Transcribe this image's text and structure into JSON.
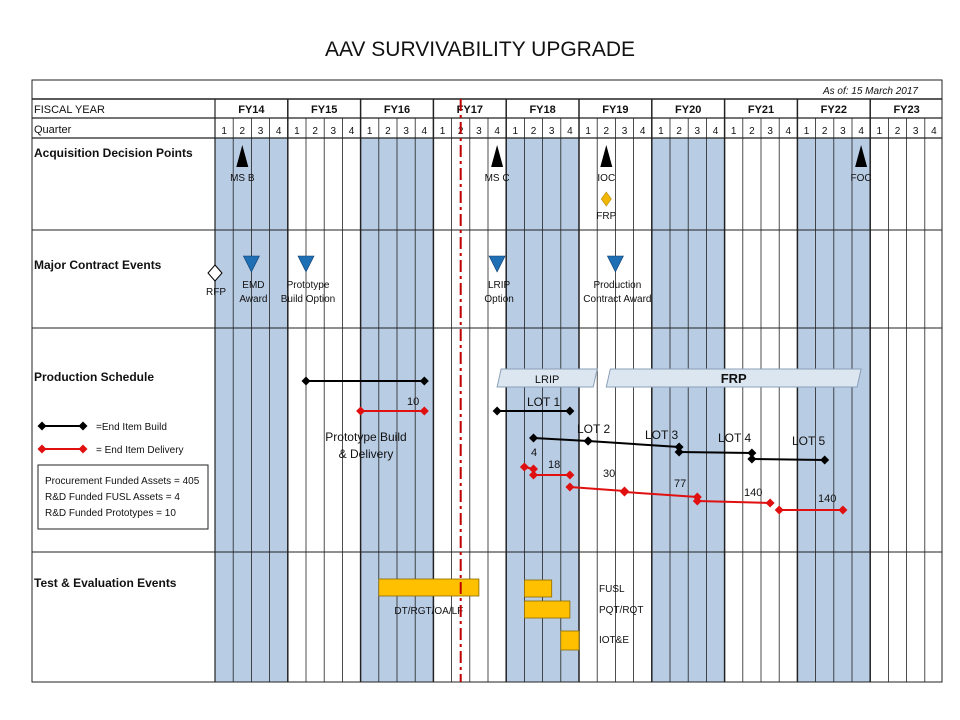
{
  "title": "AAV SURVIVABILITY UPGRADE",
  "as_of": "As of: 15 March 2017",
  "header": {
    "fiscal_year_label": "FISCAL YEAR",
    "quarter_label": "Quarter",
    "fiscal_years": [
      "FY14",
      "FY15",
      "FY16",
      "FY17",
      "FY18",
      "FY19",
      "FY20",
      "FY21",
      "FY22",
      "FY23"
    ],
    "quarters": [
      "1",
      "2",
      "3",
      "4"
    ]
  },
  "shaded_fiscal_years": [
    "FY14",
    "FY16",
    "FY18",
    "FY20",
    "FY22"
  ],
  "today_marker": {
    "fy": 2017,
    "q": 2.5
  },
  "rows": [
    {
      "id": "acq",
      "label": "Acquisition Decision Points"
    },
    {
      "id": "contract",
      "label": "Major Contract Events"
    },
    {
      "id": "prod",
      "label": "Production Schedule"
    },
    {
      "id": "te",
      "label": "Test & Evaluation Events"
    }
  ],
  "acquisition_points": [
    {
      "label": "MS B",
      "fy": 2014,
      "q": 2.5,
      "shape": "triangle-up"
    },
    {
      "label": "MS C",
      "fy": 2017,
      "q": 4.5,
      "shape": "triangle-up"
    },
    {
      "label": "IOC",
      "fy": 2019,
      "q": 2.5,
      "shape": "triangle-up"
    },
    {
      "label": "FRP",
      "fy": 2019,
      "q": 2.5,
      "shape": "diamond",
      "color": "#f2b705"
    },
    {
      "label": "FOC",
      "fy": 2022,
      "q": 4.5,
      "shape": "triangle-up"
    }
  ],
  "contract_events": [
    {
      "label": [
        "RFP"
      ],
      "fy": 2014,
      "q": 1,
      "shape": "diamond-open"
    },
    {
      "label": [
        "EMD",
        "Award"
      ],
      "fy": 2014,
      "q": 3,
      "shape": "triangle-down"
    },
    {
      "label": [
        "Prototype",
        "Build Option"
      ],
      "fy": 2015,
      "q": 2,
      "shape": "triangle-down"
    },
    {
      "label": [
        "LRIP",
        "Option"
      ],
      "fy": 2017,
      "q": 4.5,
      "shape": "triangle-down"
    },
    {
      "label": [
        "Production",
        "Contract Award"
      ],
      "fy": 2019,
      "q": 3,
      "shape": "triangle-down"
    }
  ],
  "phase_bars": [
    {
      "label": "LRIP",
      "start": {
        "fy": 2017,
        "q": 4.5
      },
      "end": {
        "fy": 2019,
        "q": 2
      }
    },
    {
      "label": "FRP",
      "start": {
        "fy": 2019,
        "q": 2.5
      },
      "end": {
        "fy": 2022,
        "q": 4.5
      }
    }
  ],
  "legend": {
    "build_label": "=End Item Build",
    "delivery_label": "= End Item Delivery",
    "build_color": "#000000",
    "delivery_color": "#e01010"
  },
  "assets_box": [
    "Procurement Funded Assets = 405",
    "R&D Funded FUSL Assets = 4",
    "R&D Funded Prototypes = 10"
  ],
  "build_lines": [
    {
      "label": "",
      "start": {
        "fy": 2015,
        "q": 2
      },
      "end": {
        "fy": 2016,
        "q": 4.5
      }
    },
    {
      "label": "LOT 1",
      "start": {
        "fy": 2017,
        "q": 4.5
      },
      "end": {
        "fy": 2018,
        "q": 4.5
      }
    },
    {
      "label": "LOT 2",
      "start": {
        "fy": 2018,
        "q": 2.5
      },
      "end": {
        "fy": 2019,
        "q": 1.5
      }
    },
    {
      "label": "LOT 3",
      "start": {
        "fy": 2019,
        "q": 1.5
      },
      "end": {
        "fy": 2020,
        "q": 2.5
      }
    },
    {
      "label": "LOT 4",
      "start": {
        "fy": 2020,
        "q": 2.5
      },
      "end": {
        "fy": 2021,
        "q": 2.5
      }
    },
    {
      "label": "LOT 5",
      "start": {
        "fy": 2021,
        "q": 2.5
      },
      "end": {
        "fy": 2022,
        "q": 2.5
      }
    }
  ],
  "delivery_lines": [
    {
      "label": "10",
      "start": {
        "fy": 2016,
        "q": 1
      },
      "end": {
        "fy": 2016,
        "q": 4.5
      }
    },
    {
      "label": "4",
      "start": {
        "fy": 2018,
        "q": 2
      },
      "end": {
        "fy": 2018,
        "q": 2.5
      }
    },
    {
      "label": "18",
      "start": {
        "fy": 2018,
        "q": 2.5
      },
      "end": {
        "fy": 2018,
        "q": 4.5
      }
    },
    {
      "label": "30",
      "start": {
        "fy": 2018,
        "q": 4.5
      },
      "end": {
        "fy": 2019,
        "q": 3.5
      }
    },
    {
      "label": "77",
      "start": {
        "fy": 2019,
        "q": 3.5
      },
      "end": {
        "fy": 2020,
        "q": 3.5
      }
    },
    {
      "label": "140",
      "start": {
        "fy": 2020,
        "q": 3.5
      },
      "end": {
        "fy": 2021,
        "q": 3.5
      }
    },
    {
      "label": "140",
      "start": {
        "fy": 2021,
        "q": 4
      },
      "end": {
        "fy": 2022,
        "q": 3.5
      }
    }
  ],
  "prototype_label": [
    "Prototype Build",
    "& Delivery"
  ],
  "te_events": [
    {
      "label": "DT/RGT/OA/LF",
      "start": {
        "fy": 2016,
        "q": 2
      },
      "end": {
        "fy": 2017,
        "q": 3.5
      },
      "label_pos": "below"
    },
    {
      "label": "FUSL",
      "start": {
        "fy": 2018,
        "q": 2
      },
      "end": {
        "fy": 2018,
        "q": 3.5
      },
      "label_pos": "right"
    },
    {
      "label": "PQT/RQT",
      "start": {
        "fy": 2018,
        "q": 2
      },
      "end": {
        "fy": 2018,
        "q": 4.5
      },
      "label_pos": "right"
    },
    {
      "label": "IOT&E",
      "start": {
        "fy": 2018,
        "q": 4
      },
      "end": {
        "fy": 2019,
        "q": 1
      },
      "label_pos": "right"
    }
  ],
  "colors": {
    "shade": "#b8cce4",
    "bar_fill": "#ffc000",
    "phase_fill": "#dce6f1",
    "phase_stroke": "#8aa0b8",
    "triangle_blue": "#1f6fb5",
    "today_line": "#c00000"
  }
}
